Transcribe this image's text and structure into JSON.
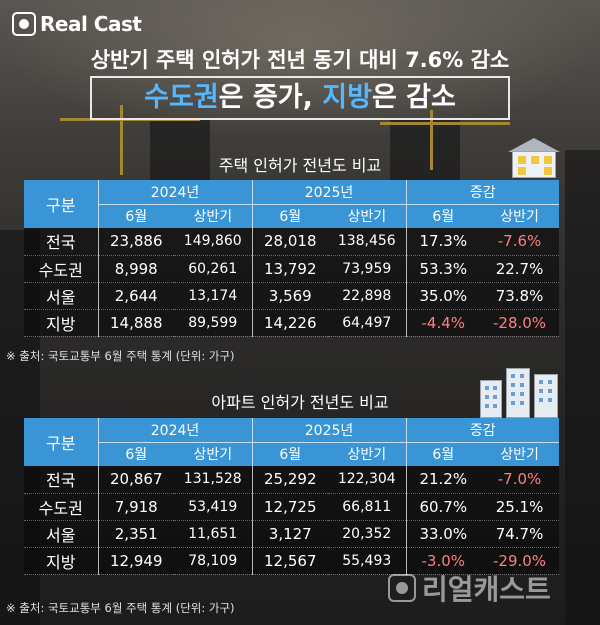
{
  "brand": {
    "logo": "Real Cast",
    "watermark": "리얼캐스트"
  },
  "header": {
    "headline": "상반기 주택 인허가 전년 동기 대비 7.6% 감소",
    "sub_parts": [
      {
        "text": "수도권",
        "color": "#55b8ff"
      },
      {
        "text": "은 증가, ",
        "color": "#ffffff"
      },
      {
        "text": "지방",
        "color": "#55b8ff"
      },
      {
        "text": "은 감소",
        "color": "#ffffff"
      }
    ]
  },
  "columns": {
    "gubun": "구분",
    "y2024": "2024년",
    "y2025": "2025년",
    "change": "증감",
    "june": "6월",
    "half": "상반기"
  },
  "tables": [
    {
      "title": "주택 인허가 전년도 비교",
      "icon": "house-icon",
      "rows": [
        {
          "region": "전국",
          "c": [
            "23,886",
            "149,860",
            "28,018",
            "138,456",
            "17.3%",
            "-7.6%"
          ]
        },
        {
          "region": "수도권",
          "c": [
            "8,998",
            "60,261",
            "13,792",
            "73,959",
            "53.3%",
            "22.7%"
          ]
        },
        {
          "region": "서울",
          "c": [
            "2,644",
            "13,174",
            "3,569",
            "22,898",
            "35.0%",
            "73.8%"
          ]
        },
        {
          "region": "지방",
          "c": [
            "14,888",
            "89,599",
            "14,226",
            "64,497",
            "-4.4%",
            "-28.0%"
          ]
        }
      ],
      "source": "※ 출처: 국토교통부 6월 주택 통계 (단위: 가구)"
    },
    {
      "title": "아파트 인허가 전년도 비교",
      "icon": "apartment-icon",
      "rows": [
        {
          "region": "전국",
          "c": [
            "20,867",
            "131,528",
            "25,292",
            "122,304",
            "21.2%",
            "-7.0%"
          ]
        },
        {
          "region": "수도권",
          "c": [
            "7,918",
            "53,419",
            "12,725",
            "66,811",
            "60.7%",
            "25.1%"
          ]
        },
        {
          "region": "서울",
          "c": [
            "2,351",
            "11,651",
            "3,127",
            "20,352",
            "33.0%",
            "74.7%"
          ]
        },
        {
          "region": "지방",
          "c": [
            "12,949",
            "78,109",
            "12,567",
            "55,493",
            "-3.0%",
            "-29.0%"
          ]
        }
      ],
      "source": "※ 출처: 국토교통부 6월 주택 통계 (단위: 가구)"
    }
  ],
  "colors": {
    "header_blue": "#3a95d6",
    "negative": "#ff7e7e",
    "highlight": "#55b8ff"
  }
}
